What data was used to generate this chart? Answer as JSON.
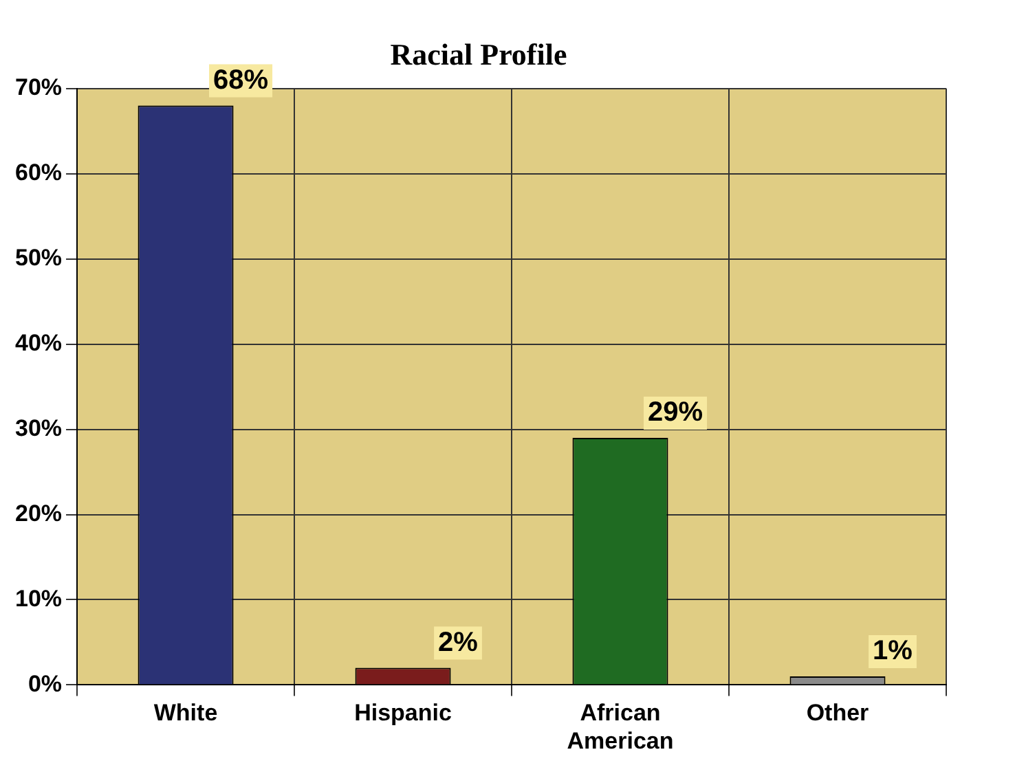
{
  "chart_data": {
    "type": "bar",
    "title": "Racial Profile",
    "categories": [
      "White",
      "Hispanic",
      "African American",
      "Other"
    ],
    "values": [
      68,
      2,
      29,
      1
    ],
    "colors": [
      "#2b3275",
      "#7a1c1c",
      "#1f6b22",
      "#8a8a8a"
    ],
    "value_labels": [
      "68%",
      "2%",
      "29%",
      "1%"
    ],
    "ylim": [
      0,
      70
    ],
    "yticks": [
      {
        "value": 0,
        "label": "0%"
      },
      {
        "value": 10,
        "label": "10%"
      },
      {
        "value": 20,
        "label": "20%"
      },
      {
        "value": 30,
        "label": "30%"
      },
      {
        "value": 40,
        "label": "40%"
      },
      {
        "value": 50,
        "label": "50%"
      },
      {
        "value": 60,
        "label": "60%"
      },
      {
        "value": 70,
        "label": "70%"
      }
    ],
    "grid": true,
    "legend": false
  }
}
